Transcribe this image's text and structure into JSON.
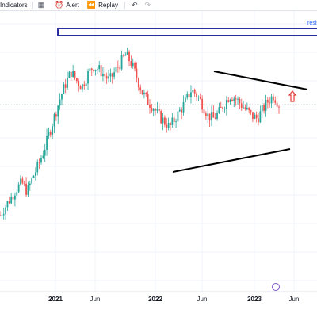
{
  "toolbar": {
    "indicators_label": "Indicators",
    "templates_icon": "grid-icon",
    "alert_icon": "alarm-clock-icon",
    "alert_label": "Alert",
    "replay_icon": "rewind-icon",
    "replay_label": "Replay",
    "undo_icon": "undo-arrow-icon",
    "redo_icon": "redo-arrow-icon"
  },
  "chart_data": {
    "type": "candlestick",
    "title": "",
    "xlabel": "",
    "ylabel": "",
    "x_ticks": [
      "2021",
      "Jun",
      "2022",
      "Jun",
      "2023",
      "Jun"
    ],
    "x_ticks_bold": [
      "2021",
      "2022",
      "2023"
    ],
    "series": [
      {
        "x": [
          0,
          0.05,
          0.1,
          0.15,
          0.2,
          0.25,
          0.3,
          0.35,
          0.4,
          0.45,
          0.5,
          0.55,
          0.6,
          0.65,
          0.7,
          0.75,
          0.8,
          0.85,
          0.9,
          0.95,
          1.0,
          1.05,
          1.1,
          1.15,
          1.2,
          1.25,
          1.3,
          1.35,
          1.4,
          1.45,
          1.5,
          1.55,
          1.6,
          1.65,
          1.7,
          1.75,
          1.8,
          1.85,
          1.9,
          1.95,
          2.0,
          2.05,
          2.1,
          2.15,
          2.2,
          2.25,
          2.3,
          2.35,
          2.4,
          2.45,
          2.5,
          2.55
        ],
        "close": [
          24,
          27,
          30,
          33,
          35,
          32,
          37,
          41,
          46,
          52,
          58,
          64,
          69,
          73,
          70,
          68,
          72,
          75,
          74,
          72,
          70,
          73,
          76,
          79,
          76,
          71,
          66,
          63,
          61,
          58,
          56,
          54,
          57,
          60,
          63,
          67,
          65,
          62,
          58,
          57,
          59,
          62,
          65,
          64,
          62,
          60,
          58,
          57,
          60,
          63,
          65,
          62
        ]
      }
    ],
    "drawings": {
      "resistance_label": "resis",
      "resistance_zone": "rectangle",
      "upper_trendline": "descending",
      "lower_trendline": "ascending",
      "signal_arrow": "up"
    },
    "grid": true,
    "legend": "none"
  }
}
